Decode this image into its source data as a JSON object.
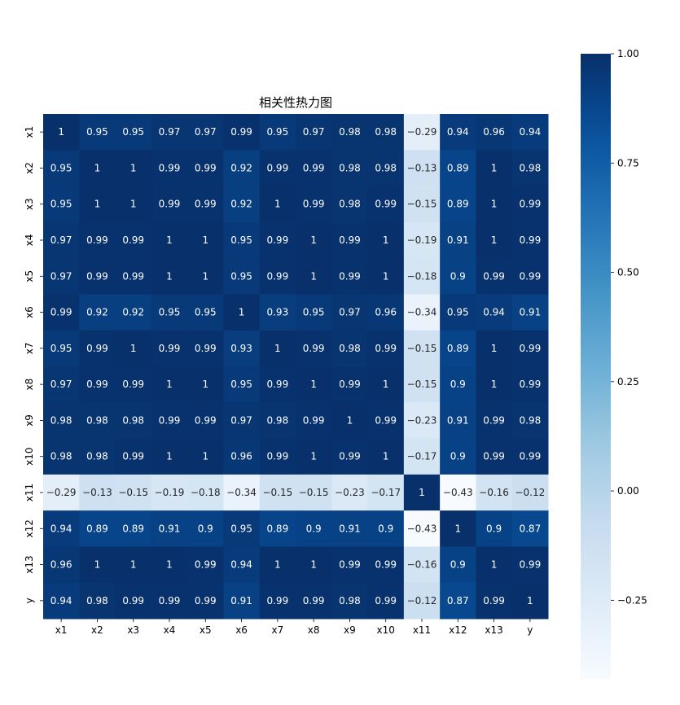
{
  "chart_data": {
    "type": "heatmap",
    "title": "相关性热力图",
    "x_labels": [
      "x1",
      "x2",
      "x3",
      "x4",
      "x5",
      "x6",
      "x7",
      "x8",
      "x9",
      "x10",
      "x11",
      "x12",
      "x13",
      "y"
    ],
    "y_labels": [
      "x1",
      "x2",
      "x3",
      "x4",
      "x5",
      "x6",
      "x7",
      "x8",
      "x9",
      "x10",
      "x11",
      "x12",
      "x13",
      "y"
    ],
    "values": [
      [
        1,
        0.95,
        0.95,
        0.97,
        0.97,
        0.99,
        0.95,
        0.97,
        0.98,
        0.98,
        -0.29,
        0.94,
        0.96,
        0.94
      ],
      [
        0.95,
        1,
        1,
        0.99,
        0.99,
        0.92,
        0.99,
        0.99,
        0.98,
        0.98,
        -0.13,
        0.89,
        1,
        0.98
      ],
      [
        0.95,
        1,
        1,
        0.99,
        0.99,
        0.92,
        1,
        0.99,
        0.98,
        0.99,
        -0.15,
        0.89,
        1,
        0.99
      ],
      [
        0.97,
        0.99,
        0.99,
        1,
        1,
        0.95,
        0.99,
        1,
        0.99,
        1,
        -0.19,
        0.91,
        1,
        0.99
      ],
      [
        0.97,
        0.99,
        0.99,
        1,
        1,
        0.95,
        0.99,
        1,
        0.99,
        1,
        -0.18,
        0.9,
        0.99,
        0.99
      ],
      [
        0.99,
        0.92,
        0.92,
        0.95,
        0.95,
        1,
        0.93,
        0.95,
        0.97,
        0.96,
        -0.34,
        0.95,
        0.94,
        0.91
      ],
      [
        0.95,
        0.99,
        1,
        0.99,
        0.99,
        0.93,
        1,
        0.99,
        0.98,
        0.99,
        -0.15,
        0.89,
        1,
        0.99
      ],
      [
        0.97,
        0.99,
        0.99,
        1,
        1,
        0.95,
        0.99,
        1,
        0.99,
        1,
        -0.15,
        0.9,
        1,
        0.99
      ],
      [
        0.98,
        0.98,
        0.98,
        0.99,
        0.99,
        0.97,
        0.98,
        0.99,
        1,
        0.99,
        -0.23,
        0.91,
        0.99,
        0.98
      ],
      [
        0.98,
        0.98,
        0.99,
        1,
        1,
        0.96,
        0.99,
        1,
        0.99,
        1,
        -0.17,
        0.9,
        0.99,
        0.99
      ],
      [
        -0.29,
        -0.13,
        -0.15,
        -0.19,
        -0.18,
        -0.34,
        -0.15,
        -0.15,
        -0.23,
        -0.17,
        1,
        -0.43,
        -0.16,
        -0.12
      ],
      [
        0.94,
        0.89,
        0.89,
        0.91,
        0.9,
        0.95,
        0.89,
        0.9,
        0.91,
        0.9,
        -0.43,
        1,
        0.9,
        0.87
      ],
      [
        0.96,
        1,
        1,
        1,
        0.99,
        0.94,
        1,
        1,
        0.99,
        0.99,
        -0.16,
        0.9,
        1,
        0.99
      ],
      [
        0.94,
        0.98,
        0.99,
        0.99,
        0.99,
        0.91,
        0.99,
        0.99,
        0.98,
        0.99,
        -0.12,
        0.87,
        0.99,
        1
      ]
    ],
    "color_range": [
      -0.43,
      1
    ],
    "colormap": "Blues",
    "colorbar_ticks": [
      -0.25,
      0.0,
      0.25,
      0.5,
      0.75,
      1.0
    ],
    "colorbar_tick_labels": [
      "−0.25",
      "0.00",
      "0.25",
      "0.50",
      "0.75",
      "1.00"
    ],
    "colorbar_position": "right",
    "annotated": true,
    "grid": false
  }
}
